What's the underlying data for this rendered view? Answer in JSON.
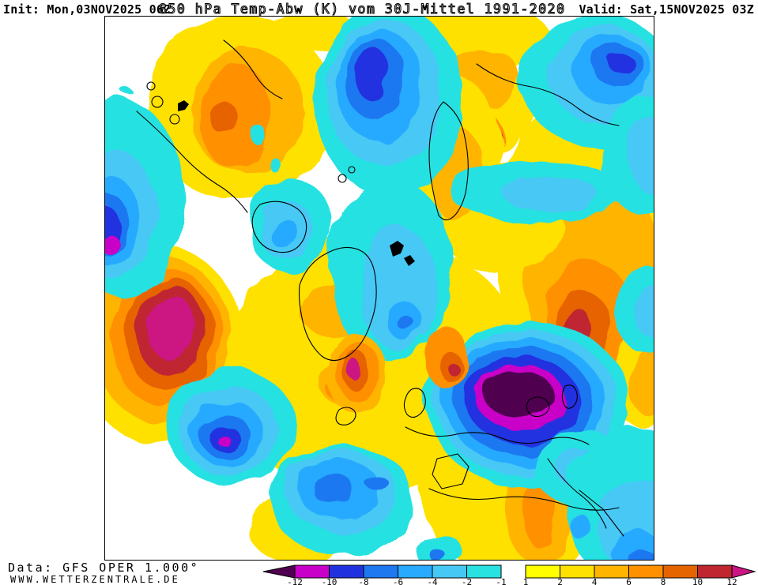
{
  "header": {
    "init_label": "Init: Mon,03NOV2025 06Z",
    "map_title": "850 hPa Temp-Abw (K) vom 30J-Mittel 1991-2020",
    "valid_label": "Valid: Sat,15NOV2025 03Z"
  },
  "footer": {
    "data_source": "Data: GFS OPER 1.000°",
    "website": "WWW.WETTERZENTRALE.DE"
  },
  "chart_data": {
    "type": "heatmap",
    "title": "850 hPa Temp-Abw (K) vom 30J-Mittel 1991-2020",
    "parameter": "850 hPa temperature anomaly versus 30-year mean 1991-2020",
    "units": "K",
    "model_run": "GFS OPER 1.000°",
    "init_time": "Mon,03NOV2025 06Z",
    "valid_time": "Sat,15NOV2025 03Z",
    "projection": "Northern Hemisphere polar stereographic",
    "palette": {
      "v12n": "#500050",
      "m10n": "#c800c8",
      "b8n": "#2032e0",
      "b6n": "#1e78f0",
      "b4n": "#28aaff",
      "b2n": "#46c8f5",
      "c1n": "#28e1e1",
      "white": "#ffffff",
      "y1p": "#ffff00",
      "y2p": "#ffe100",
      "y4p": "#ffb400",
      "o6p": "#ff9100",
      "o8p": "#e66400",
      "r10p": "#bf2630",
      "p12p": "#cc1482",
      "coast": "#000000"
    },
    "colorbar": {
      "tick_labels": [
        "-12",
        "-10",
        "-8",
        "-6",
        "-4",
        "-2",
        "-1",
        "1",
        "2",
        "4",
        "6",
        "8",
        "10",
        "12"
      ],
      "left_arrow_palette": "v12n",
      "right_arrow_palette": "p12p",
      "segments": [
        {
          "from": "-12",
          "to": "-10",
          "palette": "m10n"
        },
        {
          "from": "-10",
          "to": "-8",
          "palette": "b8n"
        },
        {
          "from": "-8",
          "to": "-6",
          "palette": "b6n"
        },
        {
          "from": "-6",
          "to": "-4",
          "palette": "b4n"
        },
        {
          "from": "-4",
          "to": "-2",
          "palette": "b2n"
        },
        {
          "from": "-2",
          "to": "-1",
          "palette": "c1n"
        },
        {
          "from": "-1",
          "to": "1",
          "palette": "white",
          "gap": true
        },
        {
          "from": "1",
          "to": "2",
          "palette": "y1p"
        },
        {
          "from": "2",
          "to": "4",
          "palette": "y2p"
        },
        {
          "from": "4",
          "to": "6",
          "palette": "y4p"
        },
        {
          "from": "6",
          "to": "8",
          "palette": "o6p"
        },
        {
          "from": "8",
          "to": "10",
          "palette": "o8p"
        },
        {
          "from": "10",
          "to": "12",
          "palette": "r10p"
        }
      ]
    },
    "anomaly_centers": [
      {
        "position": "left / eastern North America",
        "type": "warm",
        "peak_band": "> 12 K"
      },
      {
        "position": "center-right / eastern Europe-Black Sea",
        "type": "cold",
        "peak_band": "< -12 K"
      },
      {
        "position": "right / western Russia",
        "type": "warm",
        "peak_band": "10 to 12 K"
      },
      {
        "position": "top-center / central Arctic",
        "type": "cold",
        "peak_band": "-10 to -8 K"
      },
      {
        "position": "top-left / east Siberia-Alaska sector",
        "type": "warm",
        "peak_band": "8 to 10 K"
      },
      {
        "position": "bottom-center / central North Atlantic",
        "type": "cold",
        "peak_band": "-8 to -6 K"
      },
      {
        "position": "left-center / subtropical west Atlantic",
        "type": "cold",
        "peak_band": "-10 to -8 K"
      },
      {
        "position": "top-right / Kara Sea sector",
        "type": "cold",
        "peak_band": "-10 to -8 K"
      }
    ]
  }
}
